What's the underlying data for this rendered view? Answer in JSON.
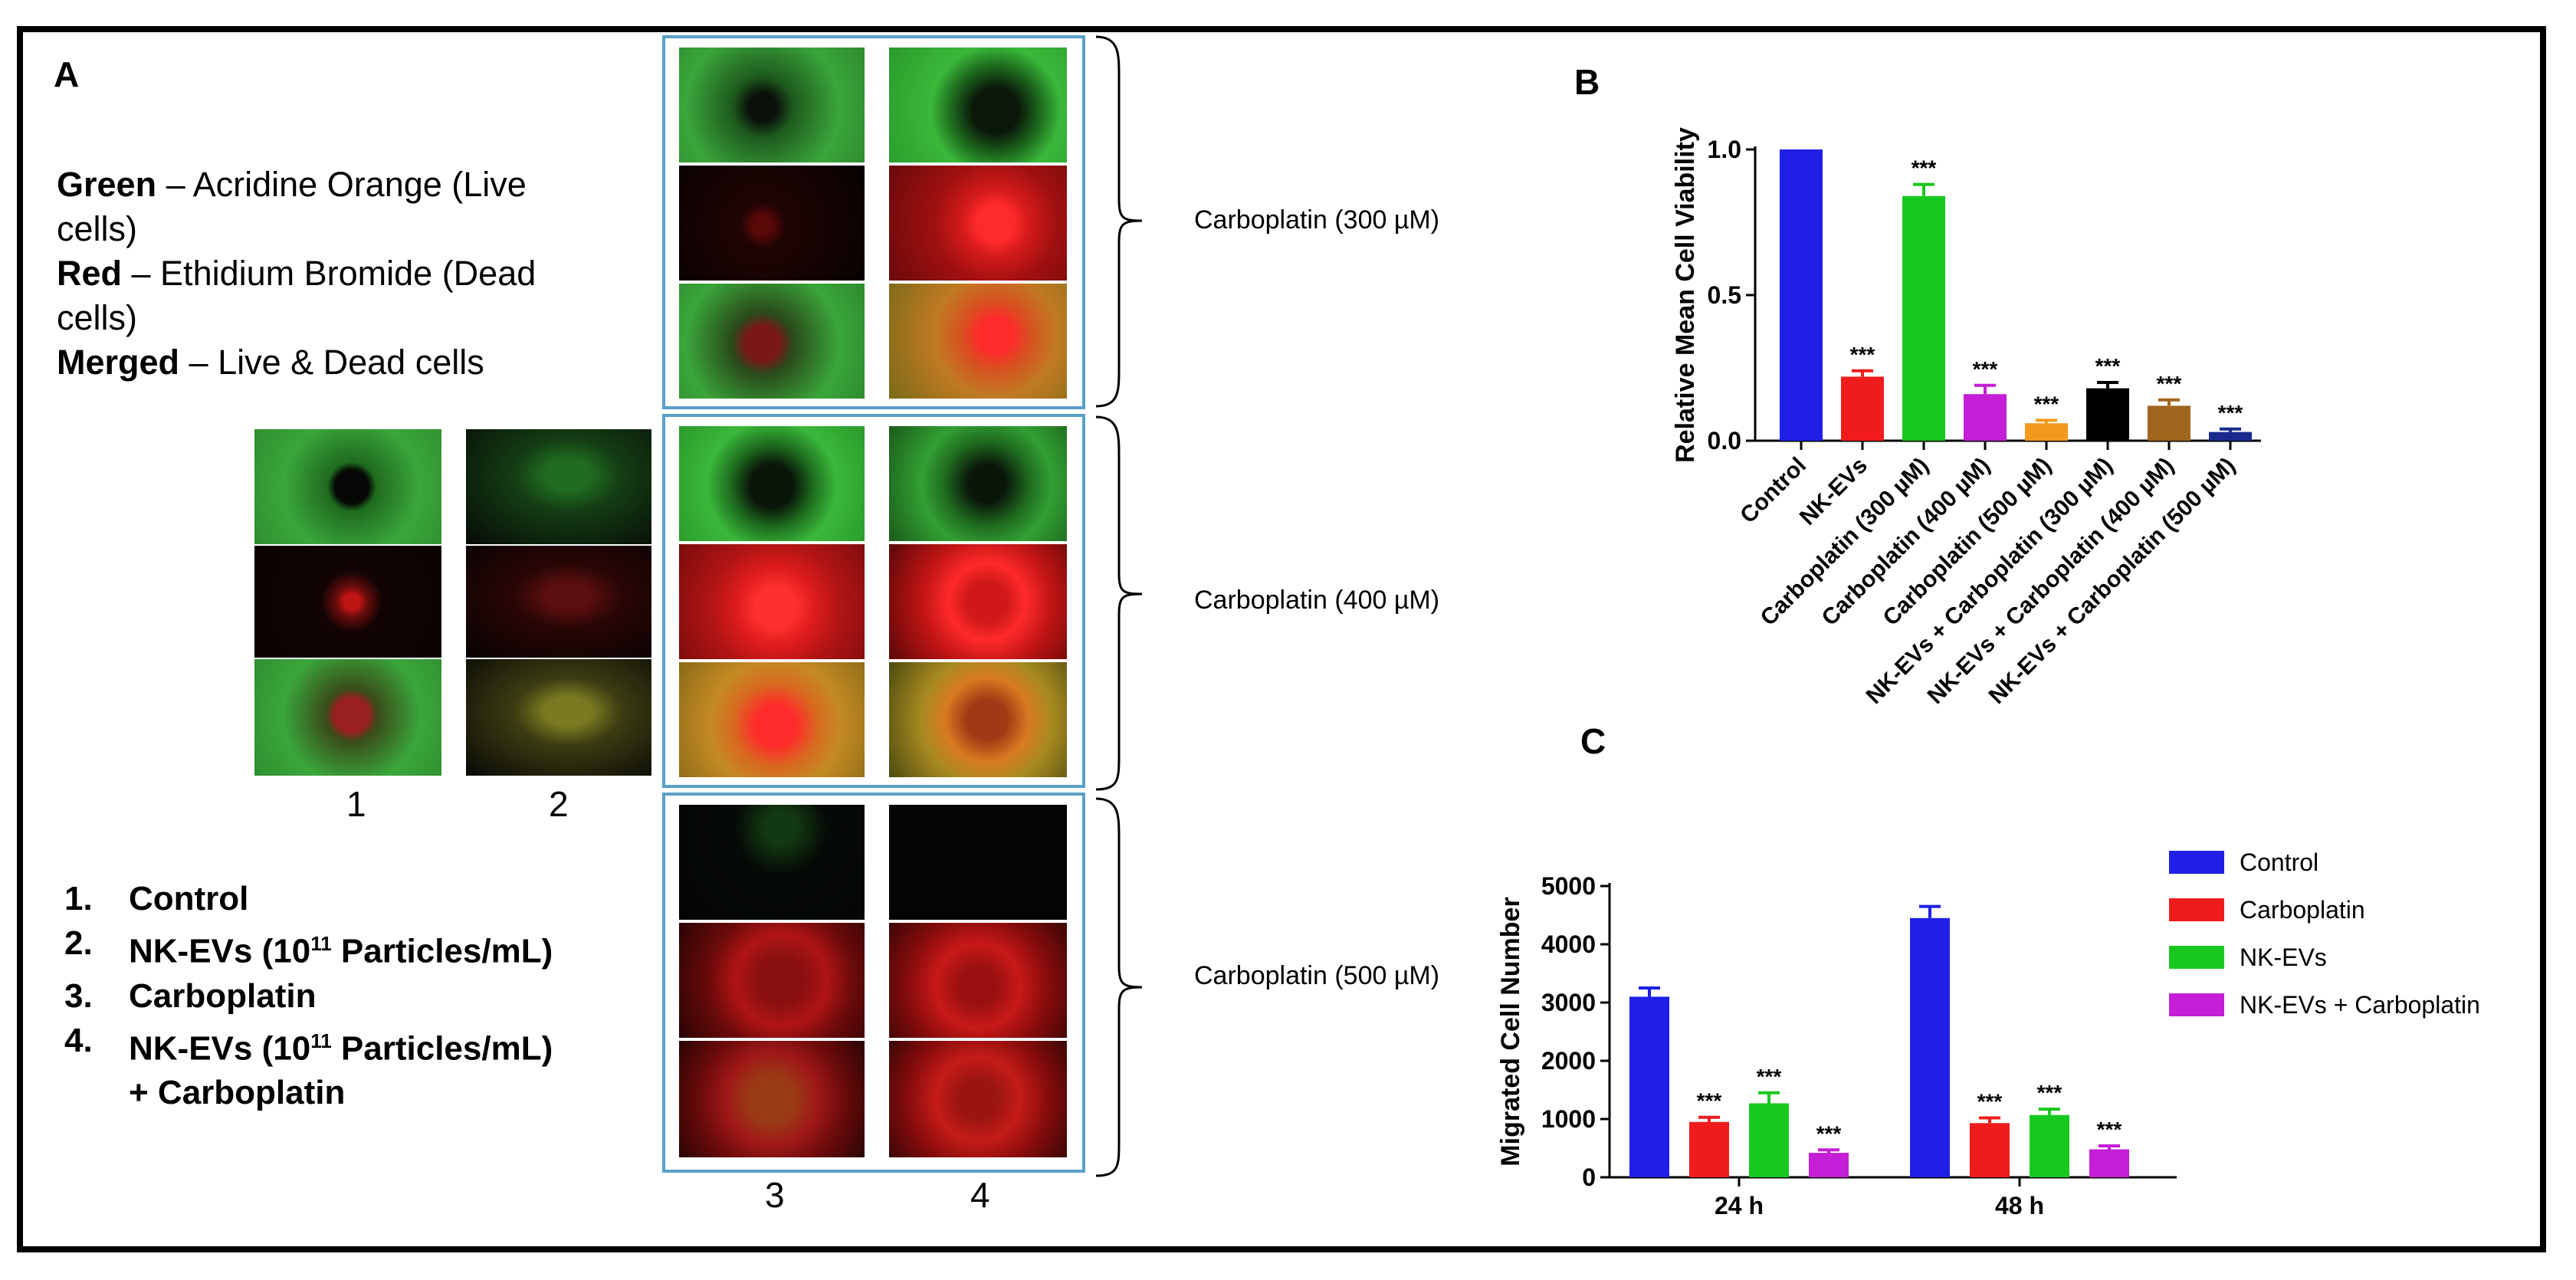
{
  "panel_labels": {
    "a": "A",
    "b": "B",
    "c": "C"
  },
  "stain_legend": [
    {
      "term": "Green",
      "desc": " – Acridine Orange (Live cells)"
    },
    {
      "term": "Red",
      "desc": " – Ethidium Bromide (Dead cells)"
    },
    {
      "term": "Merged",
      "desc": " – Live & Dead cells"
    }
  ],
  "groups": [
    {
      "num": "1.",
      "label": "Control"
    },
    {
      "num": "2.",
      "label": "NK-EVs (10",
      "sup": "11",
      "label_after": " Particles/mL)"
    },
    {
      "num": "3.",
      "label": "Carboplatin"
    },
    {
      "num": "4.",
      "label": "NK-EVs (10",
      "sup": "11",
      "label_after": " Particles/mL)",
      "line2": "+ Carboplatin"
    }
  ],
  "column_labels": [
    "1",
    "2",
    "3",
    "4"
  ],
  "dose_labels": [
    "Carboplatin (300 µM)",
    "Carboplatin (400 µM)",
    "Carboplatin (500 µM)"
  ],
  "chart_data": [
    {
      "type": "bar",
      "panel": "B",
      "ylabel": "Relative Mean Cell Viability",
      "ylim": [
        0,
        1.0
      ],
      "yticks": [
        "0.0",
        "0.5",
        "1.0"
      ],
      "categories": [
        "Control",
        "NK-EVs",
        "Carboplatin (300 µM)",
        "Carboplatin (400 µM)",
        "Carboplatin (500 µM)",
        "NK-EVs + Carboplatin (300 µM)",
        "NK-EVs + Carboplatin (400 µM)",
        "NK-EVs + Carboplatin (500 µM)"
      ],
      "values": [
        1.0,
        0.22,
        0.84,
        0.16,
        0.06,
        0.18,
        0.12,
        0.03
      ],
      "errors": [
        0.0,
        0.02,
        0.04,
        0.03,
        0.01,
        0.02,
        0.02,
        0.01
      ],
      "significance": [
        "",
        "***",
        "***",
        "***",
        "***",
        "***",
        "***",
        "***"
      ],
      "colors": [
        "#1f1fe8",
        "#f01c1c",
        "#19c81e",
        "#c41ed6",
        "#f39a1c",
        "#000000",
        "#a0661e",
        "#1a2a8c"
      ]
    },
    {
      "type": "bar",
      "panel": "C",
      "ylabel": "Migrated Cell Number",
      "ylim": [
        0,
        5000
      ],
      "yticks": [
        "0",
        "1000",
        "2000",
        "3000",
        "4000",
        "5000"
      ],
      "categories": [
        "24 h",
        "48 h"
      ],
      "series": [
        {
          "name": "Control",
          "color": "#1f1fe8",
          "values": [
            3100,
            4450
          ],
          "errors": [
            150,
            200
          ],
          "significance": [
            "",
            ""
          ]
        },
        {
          "name": "Carboplatin",
          "color": "#f01c1c",
          "values": [
            950,
            930
          ],
          "errors": [
            80,
            90
          ],
          "significance": [
            "***",
            "***"
          ]
        },
        {
          "name": "NK-EVs",
          "color": "#19c81e",
          "values": [
            1270,
            1070
          ],
          "errors": [
            180,
            100
          ],
          "significance": [
            "***",
            "***"
          ]
        },
        {
          "name": "NK-EVs + Carboplatin",
          "color": "#c41ed6",
          "values": [
            420,
            480
          ],
          "errors": [
            50,
            60
          ],
          "significance": [
            "***",
            "***"
          ]
        }
      ],
      "legend": "right"
    }
  ]
}
